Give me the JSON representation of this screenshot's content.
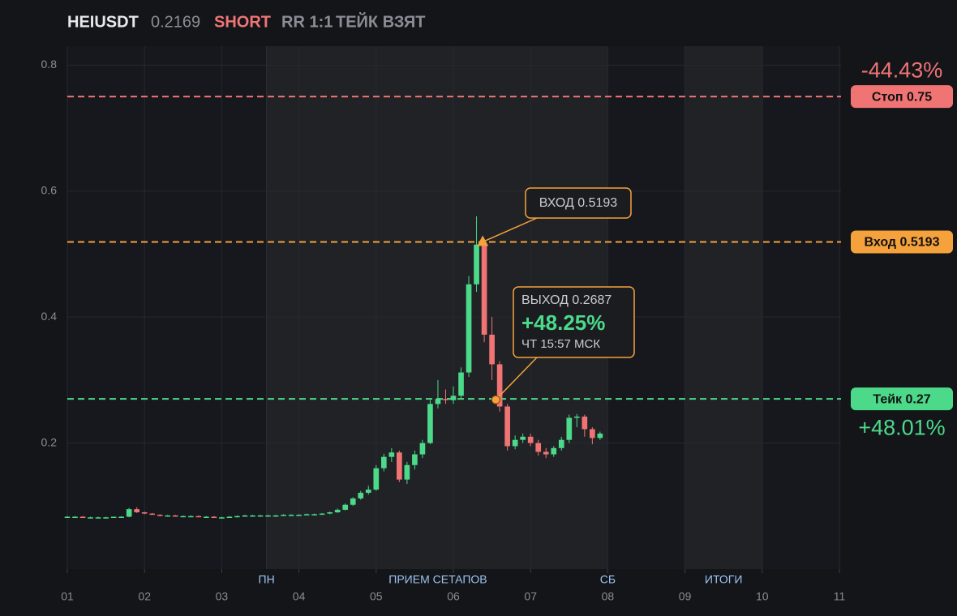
{
  "header": {
    "symbol": "HEIUSDT",
    "price": "0.2169",
    "side": "SHORT",
    "rr": "RR 1:1",
    "status": "ТЕЙК ВЗЯТ"
  },
  "chart_data": {
    "type": "candlestick",
    "xlim": [
      1,
      11
    ],
    "ylim": [
      0,
      0.83
    ],
    "xticks": [
      {
        "value": 1,
        "label": "01"
      },
      {
        "value": 2,
        "label": "02"
      },
      {
        "value": 3,
        "label": "03"
      },
      {
        "value": 4,
        "label": "04"
      },
      {
        "value": 5,
        "label": "05"
      },
      {
        "value": 6,
        "label": "06"
      },
      {
        "value": 7,
        "label": "07"
      },
      {
        "value": 8,
        "label": "08"
      },
      {
        "value": 9,
        "label": "09"
      },
      {
        "value": 10,
        "label": "10"
      },
      {
        "value": 11,
        "label": "11"
      }
    ],
    "yticks": [
      0.2,
      0.4,
      0.6,
      0.8
    ],
    "grid": true,
    "up_color": "#4cd98a",
    "down_color": "#f07474",
    "sessions": [
      {
        "start": 3.58,
        "end": 8.0
      },
      {
        "start": 9.0,
        "end": 10.0
      }
    ],
    "session_labels": [
      {
        "x": 3.58,
        "text": "ПН"
      },
      {
        "x": 5.8,
        "text": "ПРИЕМ СЕТАПОВ"
      },
      {
        "x": 8.0,
        "text": "СБ"
      },
      {
        "x": 9.5,
        "text": "ИТОГИ"
      }
    ],
    "levels": [
      {
        "value": 0.75,
        "color": "#f07474",
        "label": "Стоп 0.75",
        "pnl": "-44.43%"
      },
      {
        "value": 0.5193,
        "color": "#f5a13c",
        "label": "Вход 0.5193"
      },
      {
        "value": 0.27,
        "color": "#4cd98a",
        "label": "Тейк 0.27",
        "pnl": "+48.01%"
      }
    ],
    "trade": {
      "entry": {
        "x": 6.38,
        "price": 0.5193,
        "label": "ВХОД 0.5193"
      },
      "exit": {
        "x": 6.55,
        "price": 0.2687,
        "label": "ВЫХОД 0.2687",
        "pnl": "+48.25%",
        "time": "ЧТ 15:57 МСК"
      }
    },
    "candles": [
      {
        "x": 1.0,
        "o": 0.083,
        "h": 0.084,
        "l": 0.082,
        "c": 0.083
      },
      {
        "x": 1.1,
        "o": 0.083,
        "h": 0.084,
        "l": 0.082,
        "c": 0.083
      },
      {
        "x": 1.2,
        "o": 0.083,
        "h": 0.084,
        "l": 0.082,
        "c": 0.082
      },
      {
        "x": 1.3,
        "o": 0.082,
        "h": 0.083,
        "l": 0.081,
        "c": 0.082
      },
      {
        "x": 1.4,
        "o": 0.082,
        "h": 0.083,
        "l": 0.081,
        "c": 0.082
      },
      {
        "x": 1.5,
        "o": 0.082,
        "h": 0.083,
        "l": 0.081,
        "c": 0.082
      },
      {
        "x": 1.6,
        "o": 0.082,
        "h": 0.083,
        "l": 0.081,
        "c": 0.083
      },
      {
        "x": 1.7,
        "o": 0.083,
        "h": 0.084,
        "l": 0.082,
        "c": 0.083
      },
      {
        "x": 1.8,
        "o": 0.083,
        "h": 0.097,
        "l": 0.082,
        "c": 0.095
      },
      {
        "x": 1.9,
        "o": 0.095,
        "h": 0.098,
        "l": 0.089,
        "c": 0.09
      },
      {
        "x": 2.0,
        "o": 0.09,
        "h": 0.091,
        "l": 0.087,
        "c": 0.088
      },
      {
        "x": 2.1,
        "o": 0.088,
        "h": 0.089,
        "l": 0.086,
        "c": 0.086
      },
      {
        "x": 2.2,
        "o": 0.086,
        "h": 0.087,
        "l": 0.084,
        "c": 0.085
      },
      {
        "x": 2.3,
        "o": 0.085,
        "h": 0.086,
        "l": 0.084,
        "c": 0.085
      },
      {
        "x": 2.4,
        "o": 0.085,
        "h": 0.086,
        "l": 0.084,
        "c": 0.084
      },
      {
        "x": 2.5,
        "o": 0.084,
        "h": 0.085,
        "l": 0.083,
        "c": 0.084
      },
      {
        "x": 2.6,
        "o": 0.084,
        "h": 0.085,
        "l": 0.083,
        "c": 0.084
      },
      {
        "x": 2.7,
        "o": 0.084,
        "h": 0.085,
        "l": 0.083,
        "c": 0.083
      },
      {
        "x": 2.8,
        "o": 0.083,
        "h": 0.084,
        "l": 0.082,
        "c": 0.083
      },
      {
        "x": 2.9,
        "o": 0.083,
        "h": 0.084,
        "l": 0.082,
        "c": 0.082
      },
      {
        "x": 3.0,
        "o": 0.082,
        "h": 0.083,
        "l": 0.081,
        "c": 0.082
      },
      {
        "x": 3.1,
        "o": 0.082,
        "h": 0.084,
        "l": 0.081,
        "c": 0.083
      },
      {
        "x": 3.2,
        "o": 0.083,
        "h": 0.085,
        "l": 0.082,
        "c": 0.084
      },
      {
        "x": 3.3,
        "o": 0.084,
        "h": 0.086,
        "l": 0.083,
        "c": 0.085
      },
      {
        "x": 3.4,
        "o": 0.085,
        "h": 0.086,
        "l": 0.084,
        "c": 0.085
      },
      {
        "x": 3.5,
        "o": 0.085,
        "h": 0.086,
        "l": 0.084,
        "c": 0.085
      },
      {
        "x": 3.6,
        "o": 0.085,
        "h": 0.086,
        "l": 0.084,
        "c": 0.085
      },
      {
        "x": 3.7,
        "o": 0.085,
        "h": 0.086,
        "l": 0.084,
        "c": 0.085
      },
      {
        "x": 3.8,
        "o": 0.085,
        "h": 0.087,
        "l": 0.084,
        "c": 0.086
      },
      {
        "x": 3.9,
        "o": 0.086,
        "h": 0.087,
        "l": 0.085,
        "c": 0.086
      },
      {
        "x": 4.0,
        "o": 0.086,
        "h": 0.087,
        "l": 0.085,
        "c": 0.086
      },
      {
        "x": 4.1,
        "o": 0.086,
        "h": 0.088,
        "l": 0.085,
        "c": 0.087
      },
      {
        "x": 4.2,
        "o": 0.087,
        "h": 0.088,
        "l": 0.086,
        "c": 0.087
      },
      {
        "x": 4.3,
        "o": 0.087,
        "h": 0.089,
        "l": 0.086,
        "c": 0.088
      },
      {
        "x": 4.4,
        "o": 0.088,
        "h": 0.091,
        "l": 0.087,
        "c": 0.09
      },
      {
        "x": 4.5,
        "o": 0.09,
        "h": 0.096,
        "l": 0.089,
        "c": 0.094
      },
      {
        "x": 4.6,
        "o": 0.094,
        "h": 0.104,
        "l": 0.093,
        "c": 0.102
      },
      {
        "x": 4.7,
        "o": 0.102,
        "h": 0.114,
        "l": 0.1,
        "c": 0.112
      },
      {
        "x": 4.8,
        "o": 0.112,
        "h": 0.124,
        "l": 0.11,
        "c": 0.121
      },
      {
        "x": 4.9,
        "o": 0.121,
        "h": 0.132,
        "l": 0.118,
        "c": 0.126
      },
      {
        "x": 5.0,
        "o": 0.126,
        "h": 0.165,
        "l": 0.124,
        "c": 0.16
      },
      {
        "x": 5.1,
        "o": 0.16,
        "h": 0.183,
        "l": 0.155,
        "c": 0.178
      },
      {
        "x": 5.2,
        "o": 0.178,
        "h": 0.192,
        "l": 0.17,
        "c": 0.185
      },
      {
        "x": 5.3,
        "o": 0.185,
        "h": 0.188,
        "l": 0.138,
        "c": 0.142
      },
      {
        "x": 5.4,
        "o": 0.142,
        "h": 0.17,
        "l": 0.135,
        "c": 0.165
      },
      {
        "x": 5.5,
        "o": 0.165,
        "h": 0.188,
        "l": 0.158,
        "c": 0.182
      },
      {
        "x": 5.6,
        "o": 0.182,
        "h": 0.205,
        "l": 0.176,
        "c": 0.2
      },
      {
        "x": 5.7,
        "o": 0.2,
        "h": 0.268,
        "l": 0.198,
        "c": 0.262
      },
      {
        "x": 5.8,
        "o": 0.262,
        "h": 0.3,
        "l": 0.255,
        "c": 0.27
      },
      {
        "x": 5.9,
        "o": 0.27,
        "h": 0.285,
        "l": 0.262,
        "c": 0.268
      },
      {
        "x": 6.0,
        "o": 0.268,
        "h": 0.29,
        "l": 0.262,
        "c": 0.275
      },
      {
        "x": 6.1,
        "o": 0.275,
        "h": 0.32,
        "l": 0.27,
        "c": 0.312
      },
      {
        "x": 6.2,
        "o": 0.312,
        "h": 0.465,
        "l": 0.305,
        "c": 0.452
      },
      {
        "x": 6.3,
        "o": 0.452,
        "h": 0.56,
        "l": 0.44,
        "c": 0.515
      },
      {
        "x": 6.4,
        "o": 0.515,
        "h": 0.52,
        "l": 0.36,
        "c": 0.372
      },
      {
        "x": 6.5,
        "o": 0.372,
        "h": 0.4,
        "l": 0.3,
        "c": 0.325
      },
      {
        "x": 6.6,
        "o": 0.325,
        "h": 0.33,
        "l": 0.25,
        "c": 0.258
      },
      {
        "x": 6.7,
        "o": 0.258,
        "h": 0.262,
        "l": 0.188,
        "c": 0.195
      },
      {
        "x": 6.8,
        "o": 0.195,
        "h": 0.212,
        "l": 0.19,
        "c": 0.205
      },
      {
        "x": 6.9,
        "o": 0.205,
        "h": 0.215,
        "l": 0.2,
        "c": 0.21
      },
      {
        "x": 7.0,
        "o": 0.21,
        "h": 0.215,
        "l": 0.195,
        "c": 0.2
      },
      {
        "x": 7.1,
        "o": 0.2,
        "h": 0.205,
        "l": 0.18,
        "c": 0.186
      },
      {
        "x": 7.2,
        "o": 0.186,
        "h": 0.192,
        "l": 0.176,
        "c": 0.182
      },
      {
        "x": 7.3,
        "o": 0.182,
        "h": 0.195,
        "l": 0.178,
        "c": 0.192
      },
      {
        "x": 7.4,
        "o": 0.192,
        "h": 0.21,
        "l": 0.188,
        "c": 0.205
      },
      {
        "x": 7.5,
        "o": 0.205,
        "h": 0.245,
        "l": 0.2,
        "c": 0.24
      },
      {
        "x": 7.6,
        "o": 0.24,
        "h": 0.246,
        "l": 0.225,
        "c": 0.242
      },
      {
        "x": 7.7,
        "o": 0.242,
        "h": 0.245,
        "l": 0.21,
        "c": 0.222
      },
      {
        "x": 7.8,
        "o": 0.222,
        "h": 0.225,
        "l": 0.198,
        "c": 0.208
      },
      {
        "x": 7.9,
        "o": 0.208,
        "h": 0.218,
        "l": 0.205,
        "c": 0.215
      }
    ]
  }
}
